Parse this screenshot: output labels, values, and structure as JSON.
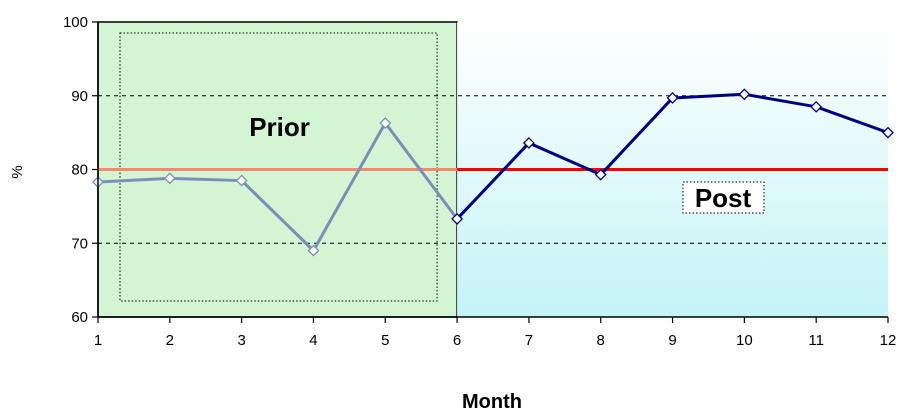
{
  "chart_data": {
    "type": "line",
    "title": "",
    "xlabel": "Month",
    "ylabel": "%",
    "xlim": [
      1,
      12
    ],
    "ylim": [
      60,
      100
    ],
    "x_ticks": [
      1,
      2,
      3,
      4,
      5,
      6,
      7,
      8,
      9,
      10,
      11,
      12
    ],
    "y_ticks": [
      60,
      70,
      80,
      90,
      100
    ],
    "grid": "dashed horizontal at 70 and 90",
    "target_line": {
      "value": 80,
      "color": "#ff0000"
    },
    "regions": [
      {
        "label": "Prior",
        "x_start": 1,
        "x_end": 6,
        "fill": "#d4f5d4"
      },
      {
        "label": "Post",
        "x_start": 6,
        "x_end": 12,
        "fill": "#cff5f5"
      }
    ],
    "series": [
      {
        "name": "",
        "x": [
          1,
          2,
          3,
          4,
          5,
          6
        ],
        "values": [
          78.3,
          78.8,
          78.5,
          69,
          86.3,
          73.3
        ],
        "color": "#7b8fb5"
      },
      {
        "name": "",
        "x": [
          6,
          7,
          8,
          9,
          10,
          11,
          12
        ],
        "values": [
          73.3,
          83.6,
          79.3,
          89.7,
          90.2,
          88.5,
          85
        ],
        "color": "#000080"
      }
    ]
  }
}
